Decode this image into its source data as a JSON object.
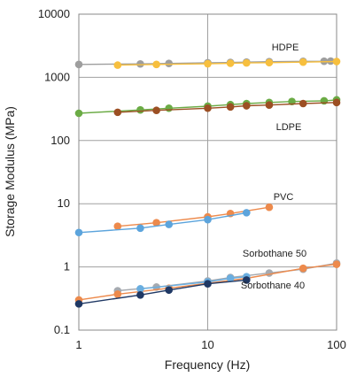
{
  "chart_data": {
    "type": "scatter",
    "x_scale": "log",
    "y_scale": "log",
    "xlim": [
      1,
      100
    ],
    "ylim": [
      0.1,
      10000
    ],
    "grid": "major",
    "xlabel": "Frequency (Hz)",
    "ylabel": "Storage Modulus (MPa)",
    "x_ticks": [
      "1",
      "10",
      "100"
    ],
    "y_ticks": [
      "0.1",
      "1",
      "10",
      "100",
      "1000",
      "10000"
    ],
    "series_labels": [
      "HDPE",
      "LDPE",
      "PVC",
      "Sorbothane 50",
      "Sorbothane 40"
    ],
    "series": [
      {
        "label": "HDPE",
        "color": "#9e9e9e",
        "points": [
          [
            1,
            1600
          ],
          [
            3,
            1630
          ],
          [
            5,
            1660
          ],
          [
            10,
            1700
          ],
          [
            15,
            1720
          ],
          [
            20,
            1740
          ],
          [
            30,
            1770
          ],
          [
            55,
            1790
          ],
          [
            80,
            1800
          ],
          [
            90,
            1810
          ]
        ]
      },
      {
        "label": "HDPE",
        "color": "#f7bf3e",
        "points": [
          [
            2,
            1560
          ],
          [
            4,
            1600
          ],
          [
            10,
            1640
          ],
          [
            15,
            1670
          ],
          [
            20,
            1690
          ],
          [
            30,
            1710
          ],
          [
            55,
            1740
          ],
          [
            100,
            1780
          ]
        ]
      },
      {
        "label": "LDPE",
        "color": "#6bab45",
        "points": [
          [
            1,
            270
          ],
          [
            3,
            305
          ],
          [
            5,
            325
          ],
          [
            10,
            350
          ],
          [
            15,
            370
          ],
          [
            20,
            385
          ],
          [
            30,
            400
          ],
          [
            45,
            415
          ],
          [
            80,
            425
          ],
          [
            100,
            440
          ]
        ]
      },
      {
        "label": "LDPE",
        "color": "#9c4f23",
        "points": [
          [
            2,
            280
          ],
          [
            4,
            300
          ],
          [
            10,
            325
          ],
          [
            15,
            340
          ],
          [
            20,
            355
          ],
          [
            30,
            365
          ],
          [
            55,
            385
          ],
          [
            100,
            400
          ]
        ]
      },
      {
        "label": "PVC",
        "color": "#ed8a4c",
        "points": [
          [
            2,
            4.4
          ],
          [
            4,
            5.0
          ],
          [
            10,
            6.2
          ],
          [
            15,
            7.0
          ],
          [
            30,
            8.8
          ]
        ]
      },
      {
        "label": "PVC",
        "color": "#5ca4dc",
        "points": [
          [
            1,
            3.5
          ],
          [
            3,
            4.1
          ],
          [
            5,
            4.7
          ],
          [
            10,
            5.6
          ],
          [
            20,
            7.2
          ]
        ]
      },
      {
        "label": "Sorbothane 50",
        "color": "#a6aab0",
        "points": [
          [
            2,
            0.42
          ],
          [
            4,
            0.48
          ],
          [
            10,
            0.6
          ],
          [
            15,
            0.68
          ],
          [
            30,
            0.8
          ],
          [
            55,
            0.92
          ],
          [
            100,
            1.15
          ]
        ]
      },
      {
        "label": "Sorbothane 50",
        "color": "#ed8a4c",
        "points": [
          [
            1,
            0.3
          ],
          [
            2,
            0.37
          ],
          [
            5,
            0.46
          ],
          [
            10,
            0.55
          ],
          [
            20,
            0.66
          ],
          [
            55,
            0.95
          ],
          [
            100,
            1.1
          ]
        ]
      },
      {
        "label": "Sorbothane 50",
        "color": "#6aaee0",
        "points": [
          [
            3,
            0.45
          ],
          [
            10,
            0.58
          ],
          [
            15,
            0.66
          ],
          [
            20,
            0.7
          ]
        ]
      },
      {
        "label": "Sorbothane 40",
        "color": "#1f3864",
        "points": [
          [
            1,
            0.26
          ],
          [
            3,
            0.36
          ],
          [
            5,
            0.43
          ],
          [
            10,
            0.54
          ],
          [
            20,
            0.62
          ]
        ]
      }
    ]
  }
}
